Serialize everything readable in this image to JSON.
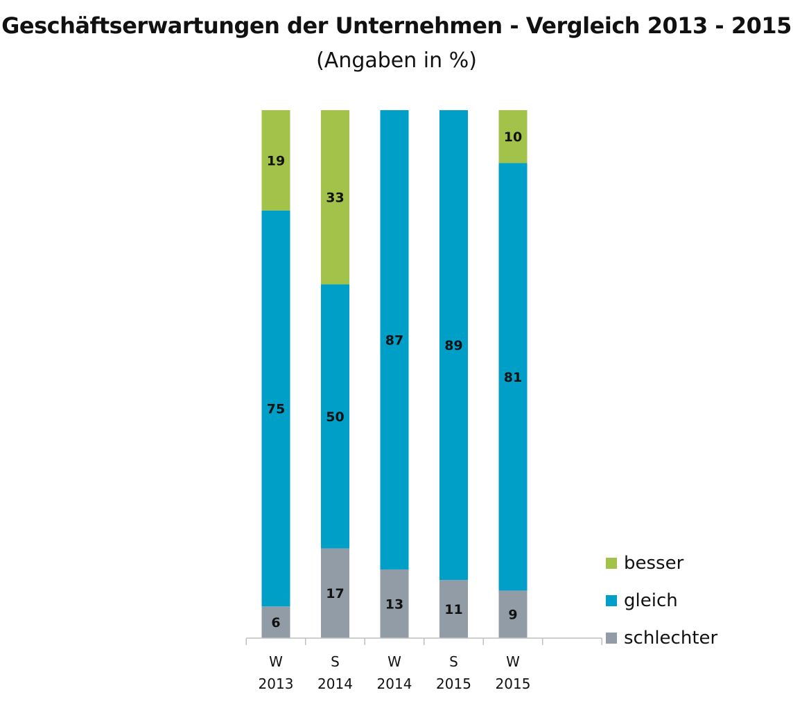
{
  "title": "Geschäftserwartungen  der Unternehmen - Vergleich 2013 - 2015",
  "subtitle": "(Angaben in %)",
  "chart_data": {
    "type": "bar",
    "stacked": true,
    "categories": [
      [
        "W",
        "2013"
      ],
      [
        "S",
        "2014"
      ],
      [
        "W",
        "2014"
      ],
      [
        "S",
        "2015"
      ],
      [
        "W",
        "2015"
      ]
    ],
    "series": [
      {
        "name": "schlechter",
        "color": "#929ca6",
        "values": [
          6,
          17,
          13,
          11,
          9
        ]
      },
      {
        "name": "gleich",
        "color": "#009fc8",
        "values": [
          75,
          50,
          87,
          89,
          81
        ]
      },
      {
        "name": "besser",
        "color": "#a3c24a",
        "values": [
          19,
          33,
          0,
          0,
          10
        ]
      }
    ],
    "ylim": [
      0,
      100
    ],
    "grid": false,
    "legend": "bottom-right",
    "xlabel": "",
    "ylabel": ""
  },
  "legend": {
    "items": [
      {
        "label": "besser",
        "color": "#a3c24a"
      },
      {
        "label": "gleich",
        "color": "#009fc8"
      },
      {
        "label": "schlechter",
        "color": "#929ca6"
      }
    ]
  }
}
